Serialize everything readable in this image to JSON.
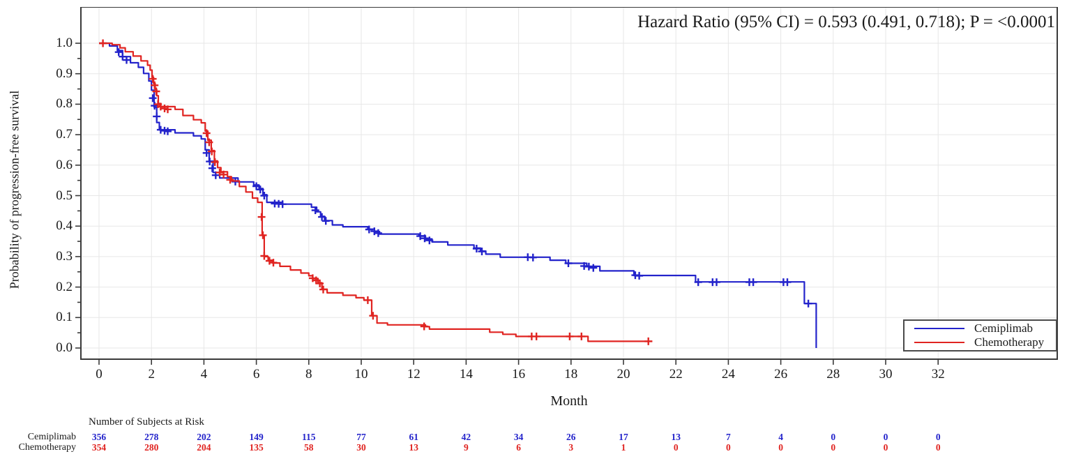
{
  "title": "Hazard Ratio (95% CI) = 0.593 (0.491, 0.718); P = <0.0001",
  "axes": {
    "y_label": "Probability of progression-free survival",
    "x_label": "Month",
    "y_tick_labels": [
      "1.0",
      "0.9",
      "0.8",
      "0.7",
      "0.6",
      "0.5",
      "0.4",
      "0.3",
      "0.2",
      "0.1",
      "0.0"
    ],
    "x_tick_labels": [
      "0",
      "2",
      "4",
      "6",
      "8",
      "10",
      "12",
      "14",
      "16",
      "18",
      "20",
      "22",
      "24",
      "26",
      "28",
      "30",
      "32"
    ]
  },
  "legend": {
    "items": [
      {
        "label": "Cemiplimab",
        "color": "#2323cb"
      },
      {
        "label": "Chemotherapy",
        "color": "#e02421"
      }
    ]
  },
  "risk_table": {
    "header": "Number of Subjects at Risk",
    "rows": [
      {
        "label": "Cemiplimab",
        "color": "#2323cb",
        "values": [
          "356",
          "278",
          "202",
          "149",
          "115",
          "77",
          "61",
          "42",
          "34",
          "26",
          "17",
          "13",
          "7",
          "4",
          "0",
          "0",
          "0"
        ]
      },
      {
        "label": "Chemotherapy",
        "color": "#e02421",
        "values": [
          "354",
          "280",
          "204",
          "135",
          "58",
          "30",
          "13",
          "9",
          "6",
          "3",
          "1",
          "0",
          "0",
          "0",
          "0",
          "0",
          "0"
        ]
      }
    ]
  },
  "chart_data": {
    "type": "line",
    "subtype": "kaplan-meier-step",
    "title": "Hazard Ratio (95% CI) = 0.593 (0.491, 0.718); P = <0.0001",
    "xlabel": "Month",
    "ylabel": "Probability of progression-free survival",
    "xlim": [
      0,
      32
    ],
    "ylim": [
      0.0,
      1.0
    ],
    "x_tick_step": 2,
    "y_tick_step": 0.1,
    "grid": true,
    "grid_color": "#e7e7e7",
    "frame_color": "#3a3a3a",
    "legend_position": "bottom-right-inside",
    "series": [
      {
        "name": "Cemiplimab",
        "color": "#2323cb",
        "points": [
          [
            0,
            1.0
          ],
          [
            0.4,
            0.991
          ],
          [
            0.7,
            0.976
          ],
          [
            0.9,
            0.956
          ],
          [
            1.2,
            0.936
          ],
          [
            1.5,
            0.921
          ],
          [
            1.7,
            0.901
          ],
          [
            1.9,
            0.876
          ],
          [
            2.0,
            0.846
          ],
          [
            2.1,
            0.79
          ],
          [
            2.2,
            0.74
          ],
          [
            2.3,
            0.716
          ],
          [
            2.9,
            0.706
          ],
          [
            3.6,
            0.696
          ],
          [
            3.9,
            0.686
          ],
          [
            4.05,
            0.65
          ],
          [
            4.2,
            0.613
          ],
          [
            4.35,
            0.576
          ],
          [
            4.6,
            0.558
          ],
          [
            5.3,
            0.545
          ],
          [
            5.9,
            0.535
          ],
          [
            6.1,
            0.523
          ],
          [
            6.25,
            0.503
          ],
          [
            6.4,
            0.478
          ],
          [
            7.0,
            0.472
          ],
          [
            8.1,
            0.462
          ],
          [
            8.3,
            0.447
          ],
          [
            8.45,
            0.432
          ],
          [
            8.6,
            0.418
          ],
          [
            8.9,
            0.404
          ],
          [
            9.3,
            0.398
          ],
          [
            10.25,
            0.39
          ],
          [
            10.5,
            0.382
          ],
          [
            10.7,
            0.374
          ],
          [
            12.2,
            0.368
          ],
          [
            12.45,
            0.358
          ],
          [
            12.7,
            0.348
          ],
          [
            13.3,
            0.338
          ],
          [
            14.3,
            0.328
          ],
          [
            14.55,
            0.318
          ],
          [
            14.75,
            0.308
          ],
          [
            15.3,
            0.298
          ],
          [
            17.2,
            0.288
          ],
          [
            17.8,
            0.278
          ],
          [
            18.6,
            0.268
          ],
          [
            19.1,
            0.253
          ],
          [
            20.4,
            0.238
          ],
          [
            22.75,
            0.217
          ],
          [
            26.9,
            0.146
          ],
          [
            27.35,
            0.0
          ]
        ],
        "censors": [
          [
            0.75,
            0.971
          ],
          [
            0.9,
            0.956
          ],
          [
            1.05,
            0.945
          ],
          [
            2.05,
            0.82
          ],
          [
            2.12,
            0.795
          ],
          [
            2.2,
            0.76
          ],
          [
            2.35,
            0.716
          ],
          [
            2.5,
            0.713
          ],
          [
            2.62,
            0.711
          ],
          [
            4.1,
            0.64
          ],
          [
            4.22,
            0.612
          ],
          [
            4.32,
            0.59
          ],
          [
            4.45,
            0.567
          ],
          [
            5.2,
            0.546
          ],
          [
            6.0,
            0.531
          ],
          [
            6.15,
            0.52
          ],
          [
            6.3,
            0.5
          ],
          [
            6.7,
            0.474
          ],
          [
            6.85,
            0.473
          ],
          [
            7.0,
            0.472
          ],
          [
            8.25,
            0.452
          ],
          [
            8.5,
            0.43
          ],
          [
            8.65,
            0.417
          ],
          [
            10.3,
            0.389
          ],
          [
            10.5,
            0.383
          ],
          [
            10.65,
            0.377
          ],
          [
            12.25,
            0.367
          ],
          [
            12.42,
            0.36
          ],
          [
            12.6,
            0.353
          ],
          [
            14.4,
            0.326
          ],
          [
            14.6,
            0.317
          ],
          [
            16.35,
            0.298
          ],
          [
            16.55,
            0.297
          ],
          [
            17.9,
            0.278
          ],
          [
            18.5,
            0.269
          ],
          [
            18.68,
            0.267
          ],
          [
            18.85,
            0.263
          ],
          [
            20.45,
            0.239
          ],
          [
            20.6,
            0.237
          ],
          [
            22.85,
            0.216
          ],
          [
            23.4,
            0.216
          ],
          [
            23.55,
            0.216
          ],
          [
            24.8,
            0.216
          ],
          [
            24.95,
            0.216
          ],
          [
            26.1,
            0.216
          ],
          [
            26.25,
            0.216
          ],
          [
            27.05,
            0.146
          ]
        ]
      },
      {
        "name": "Chemotherapy",
        "color": "#e02421",
        "points": [
          [
            0,
            1.0
          ],
          [
            0.5,
            0.995
          ],
          [
            0.8,
            0.985
          ],
          [
            1.0,
            0.972
          ],
          [
            1.3,
            0.958
          ],
          [
            1.6,
            0.942
          ],
          [
            1.85,
            0.928
          ],
          [
            1.95,
            0.912
          ],
          [
            2.02,
            0.888
          ],
          [
            2.08,
            0.868
          ],
          [
            2.14,
            0.848
          ],
          [
            2.2,
            0.828
          ],
          [
            2.26,
            0.802
          ],
          [
            2.32,
            0.792
          ],
          [
            2.9,
            0.783
          ],
          [
            3.2,
            0.763
          ],
          [
            3.6,
            0.749
          ],
          [
            3.9,
            0.739
          ],
          [
            4.05,
            0.712
          ],
          [
            4.15,
            0.682
          ],
          [
            4.28,
            0.648
          ],
          [
            4.4,
            0.614
          ],
          [
            4.52,
            0.592
          ],
          [
            4.65,
            0.578
          ],
          [
            4.9,
            0.562
          ],
          [
            5.05,
            0.548
          ],
          [
            5.35,
            0.53
          ],
          [
            5.6,
            0.512
          ],
          [
            5.85,
            0.492
          ],
          [
            6.05,
            0.478
          ],
          [
            6.22,
            0.37
          ],
          [
            6.3,
            0.3
          ],
          [
            6.45,
            0.288
          ],
          [
            6.62,
            0.279
          ],
          [
            6.9,
            0.268
          ],
          [
            7.3,
            0.256
          ],
          [
            7.7,
            0.246
          ],
          [
            8.0,
            0.237
          ],
          [
            8.15,
            0.228
          ],
          [
            8.35,
            0.214
          ],
          [
            8.5,
            0.193
          ],
          [
            8.7,
            0.181
          ],
          [
            9.3,
            0.173
          ],
          [
            9.8,
            0.165
          ],
          [
            10.1,
            0.157
          ],
          [
            10.4,
            0.106
          ],
          [
            10.6,
            0.082
          ],
          [
            11.0,
            0.076
          ],
          [
            12.45,
            0.07
          ],
          [
            12.6,
            0.062
          ],
          [
            14.9,
            0.052
          ],
          [
            15.4,
            0.045
          ],
          [
            15.9,
            0.038
          ],
          [
            18.65,
            0.022
          ],
          [
            21.1,
            0.022
          ]
        ],
        "censors": [
          [
            0.15,
            1.0
          ],
          [
            2.05,
            0.883
          ],
          [
            2.12,
            0.862
          ],
          [
            2.18,
            0.842
          ],
          [
            2.25,
            0.8
          ],
          [
            2.35,
            0.792
          ],
          [
            2.5,
            0.786
          ],
          [
            2.62,
            0.783
          ],
          [
            4.1,
            0.705
          ],
          [
            4.2,
            0.675
          ],
          [
            4.3,
            0.645
          ],
          [
            4.42,
            0.61
          ],
          [
            4.6,
            0.576
          ],
          [
            4.75,
            0.569
          ],
          [
            5.0,
            0.552
          ],
          [
            6.2,
            0.43
          ],
          [
            6.25,
            0.37
          ],
          [
            6.3,
            0.302
          ],
          [
            6.5,
            0.286
          ],
          [
            6.65,
            0.28
          ],
          [
            8.15,
            0.229
          ],
          [
            8.28,
            0.222
          ],
          [
            8.42,
            0.212
          ],
          [
            8.55,
            0.192
          ],
          [
            10.25,
            0.157
          ],
          [
            10.45,
            0.106
          ],
          [
            12.4,
            0.071
          ],
          [
            16.5,
            0.038
          ],
          [
            16.68,
            0.038
          ],
          [
            17.95,
            0.038
          ],
          [
            18.4,
            0.038
          ],
          [
            20.95,
            0.022
          ]
        ]
      }
    ],
    "risk_table": {
      "header": "Number of Subjects at Risk",
      "months": [
        0,
        2,
        4,
        6,
        8,
        10,
        12,
        14,
        16,
        18,
        20,
        22,
        24,
        26,
        28,
        30,
        32
      ],
      "rows": [
        {
          "name": "Cemiplimab",
          "values": [
            356,
            278,
            202,
            149,
            115,
            77,
            61,
            42,
            34,
            26,
            17,
            13,
            7,
            4,
            0,
            0,
            0
          ]
        },
        {
          "name": "Chemotherapy",
          "values": [
            354,
            280,
            204,
            135,
            58,
            30,
            13,
            9,
            6,
            3,
            1,
            0,
            0,
            0,
            0,
            0,
            0
          ]
        }
      ]
    }
  }
}
